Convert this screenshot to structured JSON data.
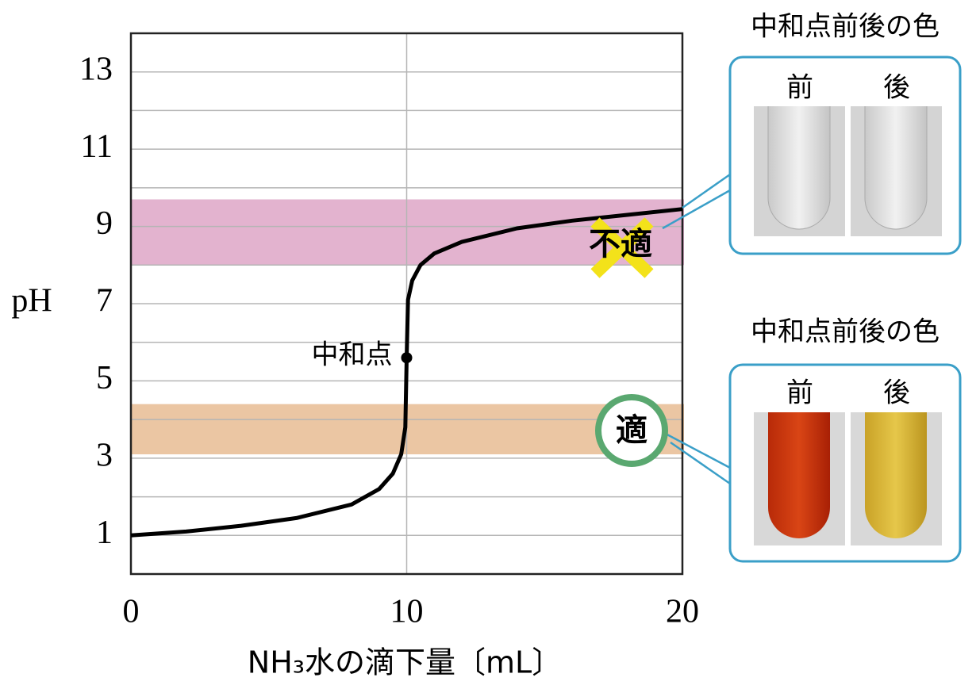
{
  "chart_data": {
    "type": "line",
    "x_label": "NH₃水の滴下量〔mL〕",
    "y_label": "pH",
    "xlim": [
      0,
      20
    ],
    "ylim": [
      0,
      14
    ],
    "xticks": [
      0,
      10,
      20
    ],
    "yticks": [
      1,
      3,
      5,
      7,
      9,
      11,
      13
    ],
    "minor_yticks": [
      2,
      4,
      6,
      8,
      10,
      12
    ],
    "grid": true,
    "x": [
      0,
      2,
      4,
      6,
      8,
      9,
      9.5,
      9.8,
      9.95,
      10,
      10.05,
      10.2,
      10.5,
      11,
      12,
      14,
      16,
      18,
      20
    ],
    "values": [
      1.0,
      1.1,
      1.25,
      1.45,
      1.8,
      2.2,
      2.6,
      3.1,
      3.8,
      5.6,
      7.1,
      7.6,
      8.0,
      8.3,
      8.6,
      8.95,
      9.15,
      9.3,
      9.45
    ],
    "color": "#000000",
    "annotations": [
      {
        "text": "中和点",
        "x": 10,
        "y": 5.6
      }
    ],
    "bands": [
      {
        "range": [
          8.0,
          9.7
        ],
        "color": "#e3b3cf",
        "label": "不適"
      },
      {
        "range": [
          3.1,
          4.4
        ],
        "color": "#ebc6a3",
        "label": "適"
      }
    ],
    "callouts": [
      {
        "title": "中和点前後の色",
        "before": "前",
        "after": "後"
      },
      {
        "title": "中和点前後の色",
        "before": "前",
        "after": "後"
      }
    ]
  }
}
